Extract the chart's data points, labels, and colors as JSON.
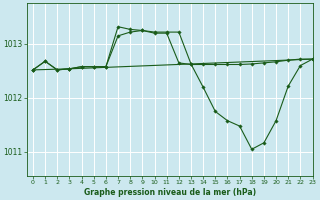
{
  "title": "Graphe pression niveau de la mer (hPa)",
  "bg_color": "#cce8ef",
  "grid_color": "#ffffff",
  "line_color_dark": "#1a5c1a",
  "xlim": [
    -0.5,
    23
  ],
  "ylim": [
    1010.55,
    1013.75
  ],
  "yticks": [
    1011,
    1012,
    1013
  ],
  "xticks": [
    0,
    1,
    2,
    3,
    4,
    5,
    6,
    7,
    8,
    9,
    10,
    11,
    12,
    13,
    14,
    15,
    16,
    17,
    18,
    19,
    20,
    21,
    22,
    23
  ],
  "series1_x": [
    0,
    1,
    2,
    3,
    4,
    5,
    6,
    7,
    8,
    9,
    10,
    11,
    12,
    13,
    14,
    15,
    16,
    17,
    18,
    19,
    20,
    21,
    22,
    23
  ],
  "series1_y": [
    1012.52,
    1012.68,
    1012.52,
    1012.54,
    1012.58,
    1012.58,
    1012.58,
    1013.32,
    1013.27,
    1013.25,
    1013.22,
    1013.22,
    1013.22,
    1012.63,
    1012.2,
    1011.75,
    1011.58,
    1011.48,
    1011.05,
    1011.17,
    1011.58,
    1012.22,
    1012.6,
    1012.72
  ],
  "series2_x": [
    0,
    1,
    2,
    3,
    4,
    5,
    6,
    7,
    8,
    9,
    10,
    11,
    12,
    13,
    14,
    15,
    16,
    17,
    18,
    19,
    20,
    21,
    22,
    23
  ],
  "series2_y": [
    1012.52,
    1012.68,
    1012.52,
    1012.54,
    1012.58,
    1012.58,
    1012.58,
    1013.15,
    1013.22,
    1013.25,
    1013.2,
    1013.2,
    1012.65,
    1012.62,
    1012.62,
    1012.62,
    1012.62,
    1012.62,
    1012.63,
    1012.65,
    1012.67,
    1012.7,
    1012.72,
    1012.72
  ],
  "series3_x": [
    0,
    3,
    23
  ],
  "series3_y": [
    1012.52,
    1012.54,
    1012.72
  ]
}
